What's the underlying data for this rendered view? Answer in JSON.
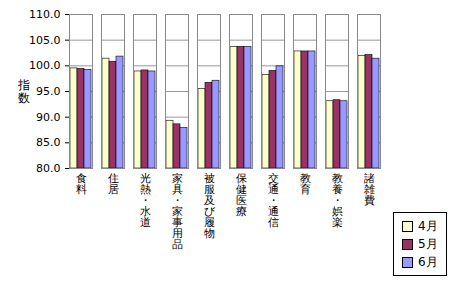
{
  "chart_data": {
    "type": "bar",
    "categories": [
      "食料",
      "住居",
      "光熱・水道",
      "家具・家事用品",
      "被服及び履物",
      "保健医療",
      "交通・通信",
      "教育",
      "教養・娯楽",
      "諸雑費"
    ],
    "y_label": "指数",
    "series": [
      {
        "name": "4月",
        "color": "#ffffcc",
        "values": [
          99.5,
          101.4,
          98.9,
          89.3,
          95.5,
          103.7,
          98.2,
          102.8,
          93.1,
          101.9
        ]
      },
      {
        "name": "5月",
        "color": "#993366",
        "values": [
          99.4,
          100.8,
          99.1,
          88.6,
          96.7,
          103.7,
          99.0,
          102.8,
          93.3,
          102.1
        ]
      },
      {
        "name": "6月",
        "color": "#9999ff",
        "values": [
          99.2,
          101.8,
          98.9,
          87.9,
          97.1,
          103.7,
          99.9,
          102.8,
          93.1,
          101.4
        ]
      }
    ],
    "ylim": [
      80,
      110
    ],
    "yticks": [
      {
        "value": 80,
        "label": "80.0"
      },
      {
        "value": 85,
        "label": "85.0"
      },
      {
        "value": 90,
        "label": "90.0"
      },
      {
        "value": 95,
        "label": "95.0"
      },
      {
        "value": 100,
        "label": "100.0"
      },
      {
        "value": 105,
        "label": "105.0"
      },
      {
        "value": 110,
        "label": "110.0"
      }
    ],
    "grid": true,
    "legend": "bottom-right"
  }
}
